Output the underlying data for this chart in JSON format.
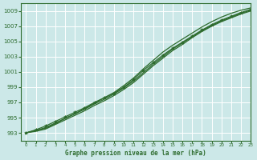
{
  "title": "Graphe pression niveau de la mer (hPa)",
  "bg_color": "#cce8e8",
  "grid_color": "#ffffff",
  "line_color": "#2d6b2d",
  "marker_color": "#2d6b2d",
  "xlim": [
    -0.5,
    23
  ],
  "ylim": [
    992.0,
    1010.0
  ],
  "yticks": [
    993,
    995,
    997,
    999,
    1001,
    1003,
    1005,
    1007,
    1009
  ],
  "xticks": [
    0,
    1,
    2,
    3,
    4,
    5,
    6,
    7,
    8,
    9,
    10,
    11,
    12,
    13,
    14,
    15,
    16,
    17,
    18,
    19,
    20,
    21,
    22,
    23
  ],
  "line1_x": [
    0,
    1,
    2,
    3,
    4,
    5,
    6,
    7,
    8,
    9,
    10,
    11,
    12,
    13,
    14,
    15,
    16,
    17,
    18,
    19,
    20,
    21,
    22,
    23
  ],
  "line1": [
    993.0,
    993.4,
    993.9,
    994.5,
    995.1,
    995.7,
    996.3,
    997.0,
    997.6,
    998.2,
    999.0,
    1000.0,
    1001.2,
    1002.2,
    1003.2,
    1004.1,
    1004.9,
    1005.7,
    1006.5,
    1007.2,
    1007.8,
    1008.3,
    1008.8,
    1009.2
  ],
  "line2_x": [
    0,
    1,
    2,
    3,
    4,
    5,
    6,
    7,
    8,
    9,
    10,
    11,
    12,
    13,
    14,
    15,
    16,
    17,
    18,
    19,
    20,
    21,
    22,
    23
  ],
  "line2": [
    993.0,
    993.3,
    993.7,
    994.3,
    994.9,
    995.5,
    996.1,
    996.8,
    997.4,
    998.1,
    998.9,
    999.8,
    1000.9,
    1002.0,
    1003.0,
    1004.0,
    1004.8,
    1005.6,
    1006.4,
    1007.1,
    1007.7,
    1008.2,
    1008.7,
    1009.1
  ],
  "line3_x": [
    0,
    1,
    2,
    3,
    4,
    5,
    6,
    7,
    8,
    9,
    10,
    11,
    12,
    13,
    14,
    15,
    16,
    17,
    18,
    19,
    20,
    21,
    22,
    23
  ],
  "line3": [
    993.0,
    993.2,
    993.5,
    994.1,
    994.7,
    995.3,
    995.9,
    996.6,
    997.2,
    997.9,
    998.7,
    999.6,
    1000.7,
    1001.8,
    1002.8,
    1003.8,
    1004.6,
    1005.5,
    1006.3,
    1007.0,
    1007.6,
    1008.1,
    1008.6,
    1009.0
  ],
  "line4_x": [
    0,
    2,
    3,
    4,
    5,
    6,
    7,
    8,
    9,
    10,
    11,
    12,
    13,
    14,
    15,
    16,
    17,
    18,
    19,
    20,
    21,
    22,
    23
  ],
  "line4": [
    993.0,
    993.6,
    994.2,
    994.9,
    995.5,
    996.2,
    996.9,
    997.6,
    998.3,
    999.2,
    1000.2,
    1001.4,
    1002.5,
    1003.6,
    1004.5,
    1005.3,
    1006.1,
    1006.9,
    1007.6,
    1008.2,
    1008.7,
    1009.1,
    1009.4
  ]
}
